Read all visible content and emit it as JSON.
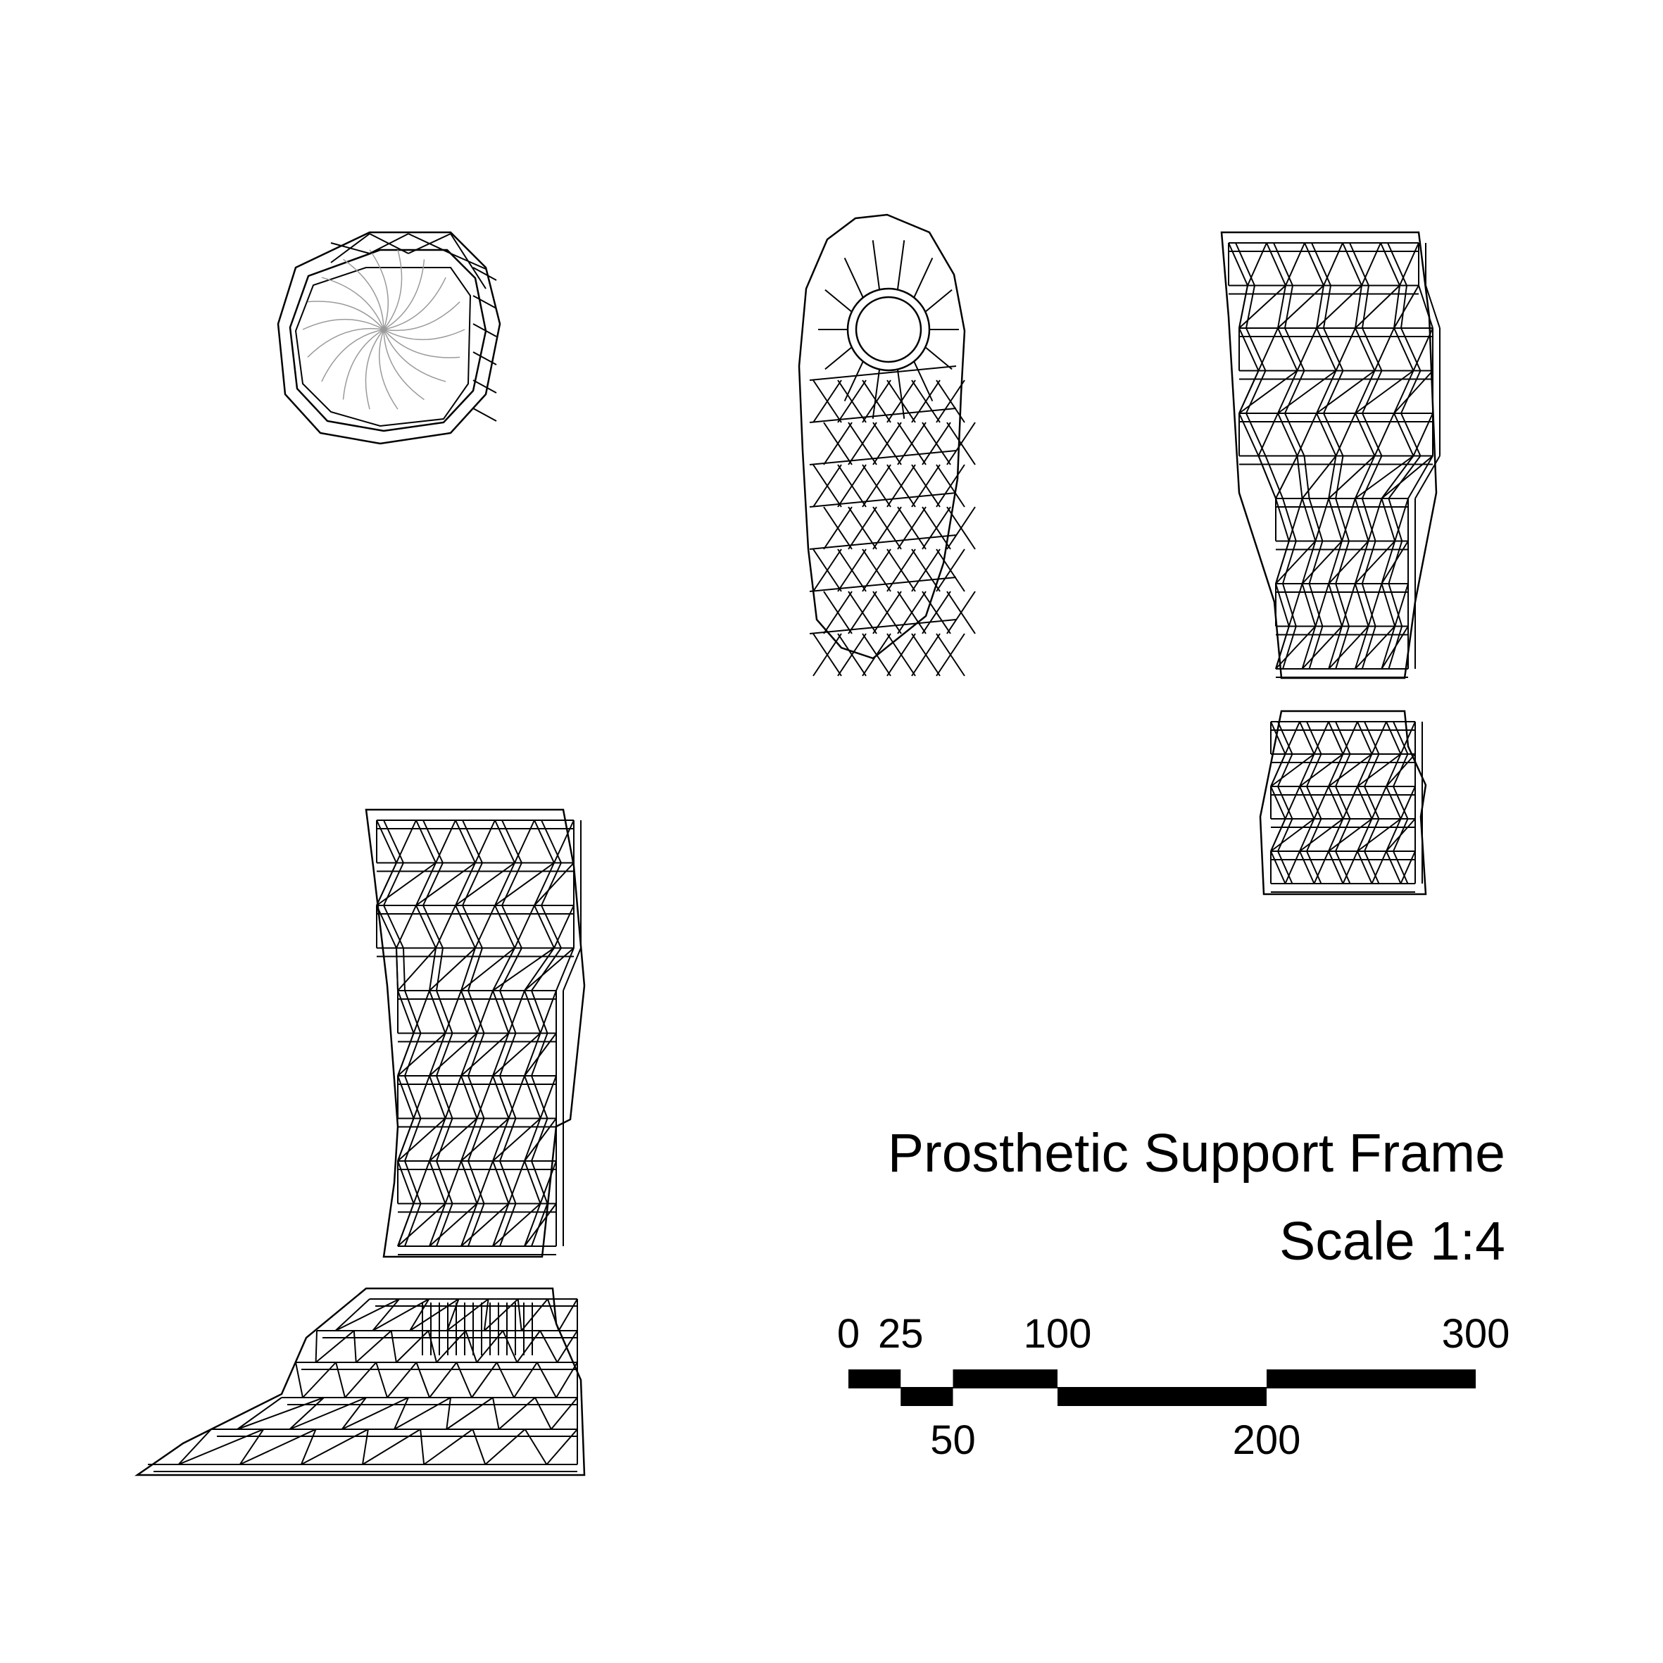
{
  "title": "Prosthetic Support Frame",
  "scale_text": "Scale 1:4",
  "scale_bar": {
    "ticks_top": [
      "0",
      "25",
      "100",
      "300"
    ],
    "ticks_bottom": [
      "50",
      "200"
    ],
    "segments": [
      {
        "from": 0,
        "to": 25,
        "row": "top"
      },
      {
        "from": 25,
        "to": 50,
        "row": "bottom"
      },
      {
        "from": 50,
        "to": 100,
        "row": "top"
      },
      {
        "from": 100,
        "to": 200,
        "row": "bottom"
      },
      {
        "from": 200,
        "to": 300,
        "row": "top"
      }
    ],
    "max": 300
  },
  "views": [
    "top-view",
    "front-view",
    "side-view",
    "side-view-lower",
    "full-leg-view"
  ],
  "colors": {
    "line": "#000000",
    "inner": "#9a9a9a",
    "background": "#ffffff"
  }
}
